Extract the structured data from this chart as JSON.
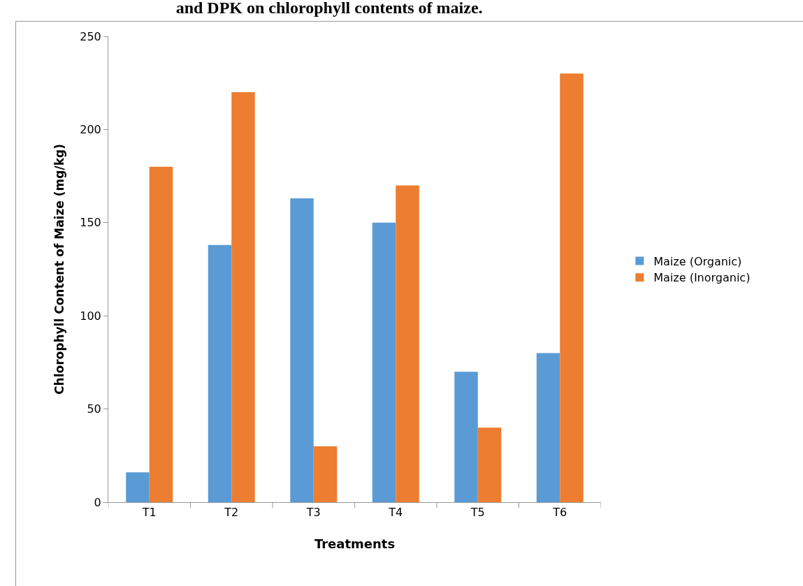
{
  "chart_data": {
    "type": "bar",
    "title": "and DPK on chlorophyll contents of maize.",
    "xlabel": "Treatments",
    "ylabel": "Chlorophyll Content of Maize (mg/kg)",
    "categories": [
      "T1",
      "T2",
      "T3",
      "T4",
      "T5",
      "T6"
    ],
    "series": [
      {
        "name": "Maize (Organic)",
        "color": "#5b9bd5",
        "values": [
          16,
          138,
          163,
          150,
          70,
          80
        ]
      },
      {
        "name": "Maize (Inorganic)",
        "color": "#ed7d31",
        "values": [
          180,
          220,
          30,
          170,
          40,
          230
        ]
      }
    ],
    "ylim": [
      0,
      250
    ],
    "yticks": [
      0,
      50,
      100,
      150,
      200,
      250
    ],
    "grid": false,
    "legend": "right"
  }
}
